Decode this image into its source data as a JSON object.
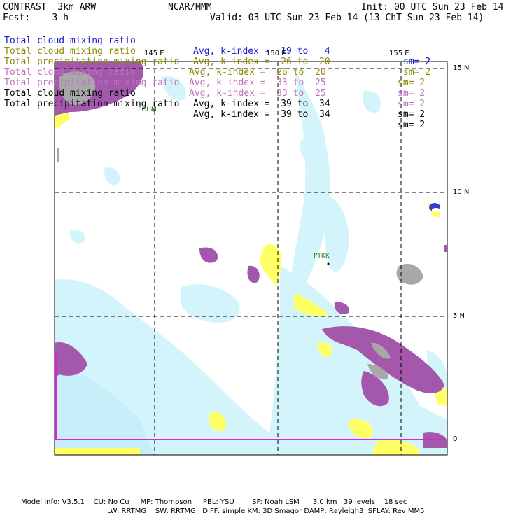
{
  "header": {
    "model": "CONTRAST  3km ARW",
    "institution": "NCAR/MMM",
    "init": "Init: 00 UTC Sun 23 Feb 14",
    "forecast": "Fcst:    3 h",
    "valid": "Valid: 03 UTC Sun 23 Feb 14 (13 ChT Sun 23 Feb 14)"
  },
  "legend": [
    {
      "name": "Total cloud mixing ratio",
      "avg": "Avg, k-index =  19 to   4",
      "sm": "sm= 2",
      "color": "#1a1ad0"
    },
    {
      "name": "Total cloud mixing ratio",
      "avg": "Avg, k-index =  26 to  20",
      "sm": "sm= 2",
      "color": "#8b8b00"
    },
    {
      "name": "Total precipitation mixing ratio",
      "avg": "Avg, k-index =  26 to  20",
      "sm": "sm= 2",
      "color": "#8b8b00"
    },
    {
      "name": "Total cloud mixing ratio",
      "avg": "Avg, k-index =  33 to  25",
      "sm": "sm= 2",
      "color": "#c070c0"
    },
    {
      "name": "Total precipitation mixing ratio",
      "avg": "Avg, k-index =  33 to  25",
      "sm": "sm= 2",
      "color": "#c070c0"
    },
    {
      "name": "Total cloud mixing ratio",
      "avg": "Avg, k-index =  39 to  34",
      "sm": "sm= 2",
      "color": "#000000"
    },
    {
      "name": "Total precipitation mixing ratio",
      "avg": "Avg, k-index =  39 to  34",
      "sm": "sm= 2",
      "color": "#000000"
    }
  ],
  "map": {
    "lon_labels": [
      "145 E",
      "150 E",
      "155 E"
    ],
    "lat_labels": [
      "15 N",
      "10 N",
      "5 N",
      "0"
    ],
    "stations": [
      "PGUM",
      "PTKK"
    ],
    "colors": {
      "light_cyan": "#d4f4fb",
      "yellow": "#ffff66",
      "purple": "#a358ab",
      "gray": "#a8a8a8",
      "grid": "#000000",
      "magenta_line": "#e020e0"
    }
  },
  "footer": {
    "line1": "Model Info: V3.5.1    CU: No Cu     MP: Thompson     PBL: YSU        SF: Noah LSM      3.0 km   39 levels    18 sec",
    "line2": "LW: RRTMG    SW: RRTMG   DIFF: simple KM: 3D Smagor DAMP: Rayleigh3  SFLAY: Rev MM5"
  }
}
